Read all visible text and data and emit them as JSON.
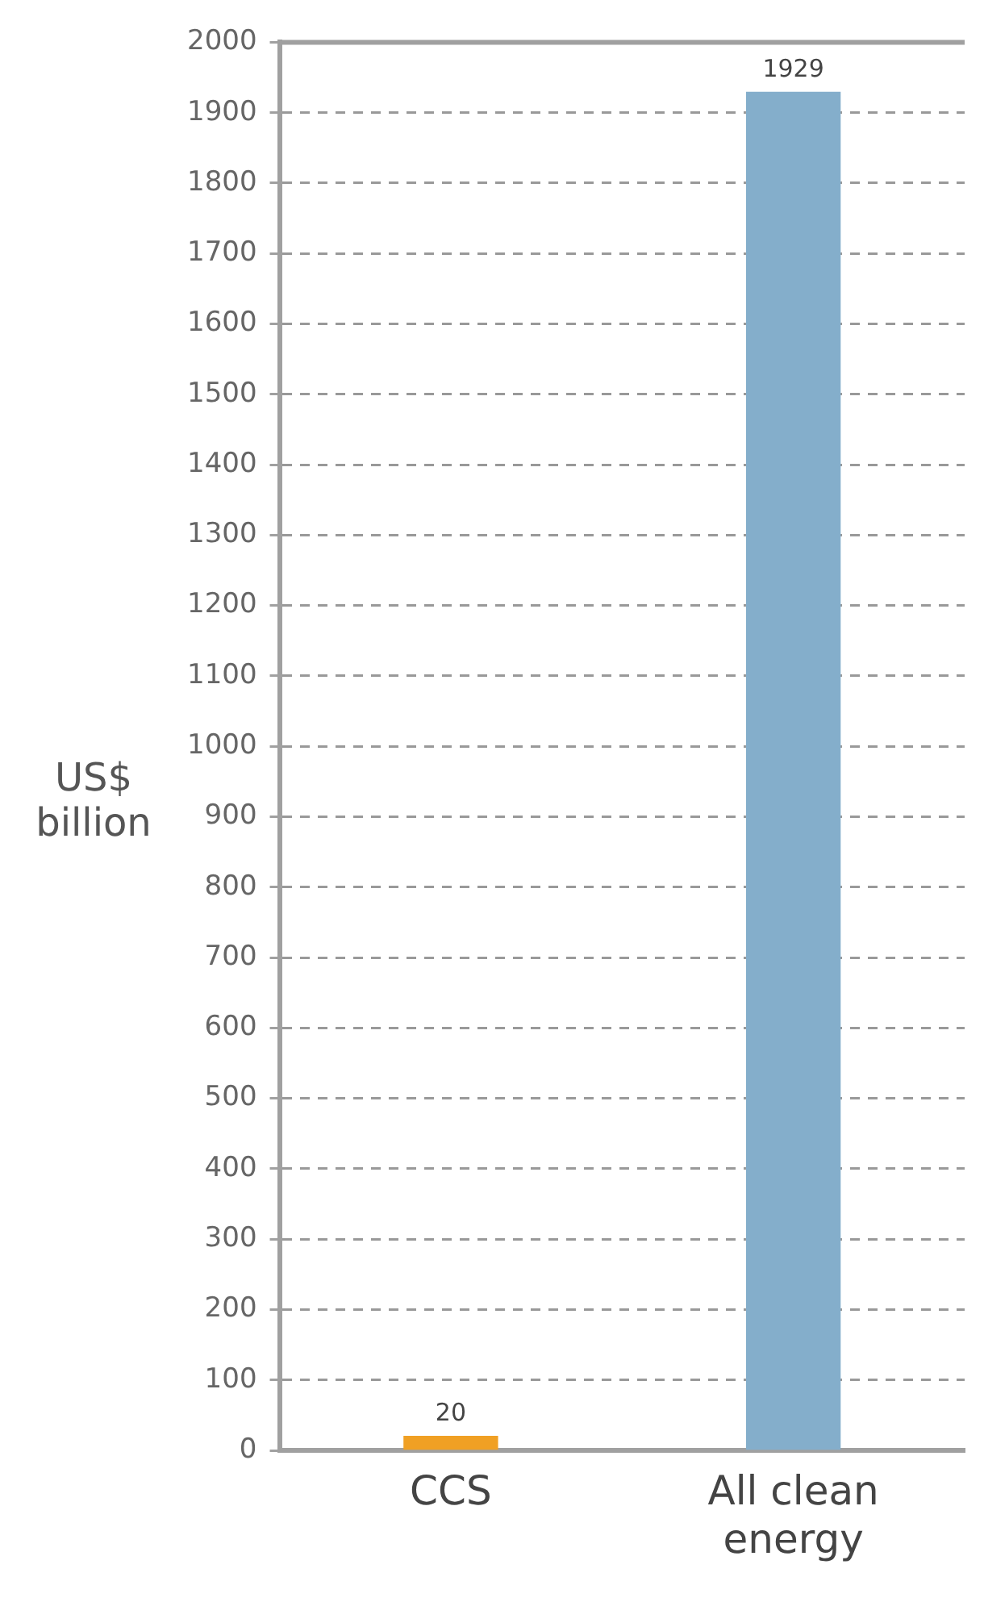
{
  "chart_data": {
    "type": "bar",
    "ylabel": "US$ billion",
    "categories": [
      "CCS",
      "All clean energy"
    ],
    "values": [
      20,
      1929
    ],
    "colors": [
      "#f0a024",
      "#84aecb"
    ],
    "ylim": [
      0,
      2000
    ],
    "yticks": [
      0,
      100,
      200,
      300,
      400,
      500,
      600,
      700,
      800,
      900,
      1000,
      1100,
      1200,
      1300,
      1400,
      1500,
      1600,
      1700,
      1800,
      1900,
      2000
    ],
    "grid": "y",
    "data_labels": true
  }
}
